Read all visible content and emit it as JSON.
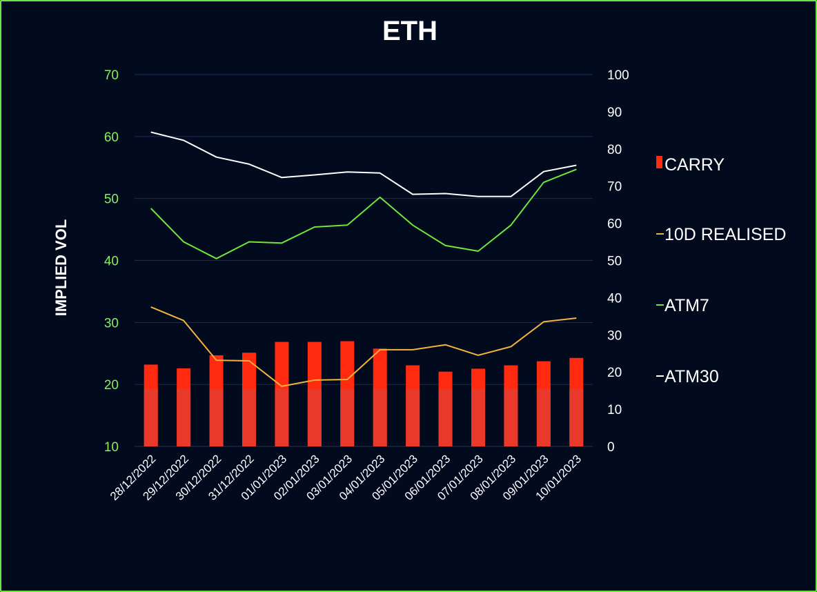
{
  "chart_data": {
    "type": "bar+line",
    "title": "ETH",
    "ylabel": "IMPLIED VOL",
    "xlabel": "",
    "categories": [
      "28/12/2022",
      "29/12/2022",
      "30/12/2022",
      "31/12/2022",
      "01/01/2023",
      "02/01/2023",
      "03/01/2023",
      "04/01/2023",
      "05/01/2023",
      "06/01/2023",
      "07/01/2023",
      "08/01/2023",
      "09/01/2023",
      "10/01/2023"
    ],
    "left_axis": {
      "ylim": [
        10,
        70
      ],
      "ticks": [
        10,
        20,
        30,
        40,
        50,
        60,
        70
      ]
    },
    "right_axis": {
      "ylim": [
        0,
        100
      ],
      "ticks": [
        0,
        10,
        20,
        30,
        40,
        50,
        60,
        70,
        80,
        90,
        100
      ]
    },
    "series": [
      {
        "name": "CARRY",
        "kind": "bar",
        "axis": "right",
        "color": "#ff2a10",
        "values": [
          22,
          21,
          24.5,
          25.2,
          28.1,
          28.1,
          28.3,
          26.3,
          21.8,
          20.1,
          20.9,
          21.8,
          22.9,
          23.8
        ]
      },
      {
        "name": "10D REALISED",
        "kind": "line",
        "axis": "left",
        "color": "#f4b33c",
        "values": [
          32.5,
          30.3,
          23.9,
          23.8,
          19.7,
          20.7,
          20.8,
          25.6,
          25.6,
          26.4,
          24.7,
          26.1,
          30.1,
          30.7
        ]
      },
      {
        "name": "ATM7",
        "kind": "line",
        "axis": "right",
        "color": "#6ee83a",
        "values": [
          64,
          55,
          50.5,
          55,
          54.7,
          59,
          59.5,
          67,
          59.5,
          54,
          52.5,
          59.5,
          71,
          74.5
        ]
      },
      {
        "name": "ATM30",
        "kind": "line",
        "axis": "right",
        "color": "#ffffff",
        "values": [
          84.5,
          82.3,
          77.8,
          75.9,
          72.3,
          73,
          73.8,
          73.5,
          67.8,
          68,
          67.2,
          67.2,
          73.9,
          75.6
        ]
      }
    ],
    "legend": {
      "placement": "right",
      "entries": [
        "CARRY",
        "10D REALISED",
        "ATM7",
        "ATM30"
      ]
    },
    "grid": true
  }
}
